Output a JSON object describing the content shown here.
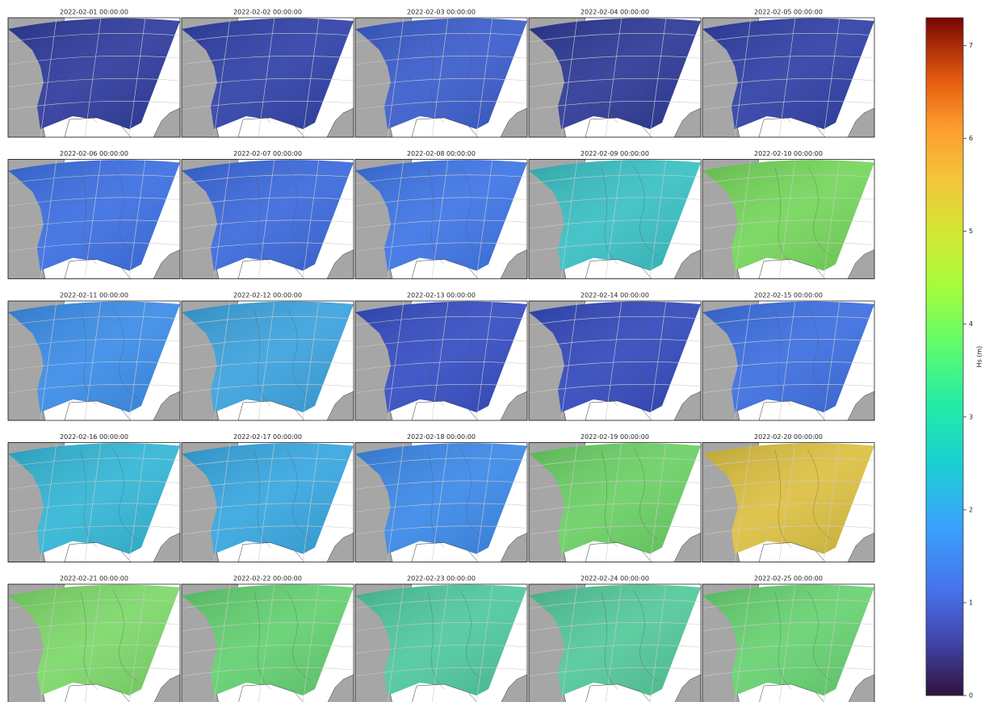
{
  "panels": [
    {
      "title": "2022-02-01 00:00:00",
      "color": "#2d3a9c"
    },
    {
      "title": "2022-02-02 00:00:00",
      "color": "#2f40a8"
    },
    {
      "title": "2022-02-03 00:00:00",
      "color": "#3a5ccc"
    },
    {
      "title": "2022-02-04 00:00:00",
      "color": "#2c3896"
    },
    {
      "title": "2022-02-05 00:00:00",
      "color": "#2f3fa6"
    },
    {
      "title": "2022-02-06 00:00:00",
      "color": "#3b6ee2"
    },
    {
      "title": "2022-02-07 00:00:00",
      "color": "#3a68dc"
    },
    {
      "title": "2022-02-08 00:00:00",
      "color": "#3d74e6"
    },
    {
      "title": "2022-02-09 00:00:00",
      "color": "#38c0c4"
    },
    {
      "title": "2022-02-10 00:00:00",
      "color": "#74d65a"
    },
    {
      "title": "2022-02-11 00:00:00",
      "color": "#3a8ce8"
    },
    {
      "title": "2022-02-12 00:00:00",
      "color": "#3aa2de"
    },
    {
      "title": "2022-02-13 00:00:00",
      "color": "#344cc2"
    },
    {
      "title": "2022-02-14 00:00:00",
      "color": "#3248bc"
    },
    {
      "title": "2022-02-15 00:00:00",
      "color": "#3b6ee0"
    },
    {
      "title": "2022-02-16 00:00:00",
      "color": "#32b6d6"
    },
    {
      "title": "2022-02-17 00:00:00",
      "color": "#36a6e0"
    },
    {
      "title": "2022-02-18 00:00:00",
      "color": "#3a88e8"
    },
    {
      "title": "2022-02-19 00:00:00",
      "color": "#6ad064"
    },
    {
      "title": "2022-02-20 00:00:00",
      "color": "#dcc040"
    },
    {
      "title": "2022-02-21 00:00:00",
      "color": "#7cd868"
    },
    {
      "title": "2022-02-22 00:00:00",
      "color": "#62d070"
    },
    {
      "title": "2022-02-23 00:00:00",
      "color": "#4ec8a0"
    },
    {
      "title": "2022-02-24 00:00:00",
      "color": "#52c89a"
    },
    {
      "title": "2022-02-25 00:00:00",
      "color": "#66d270"
    }
  ],
  "colorbar": {
    "label": "Hs (m)",
    "lim": [
      0,
      7.3
    ],
    "ticks": [
      0,
      1,
      2,
      3,
      4,
      5,
      6,
      7
    ]
  }
}
